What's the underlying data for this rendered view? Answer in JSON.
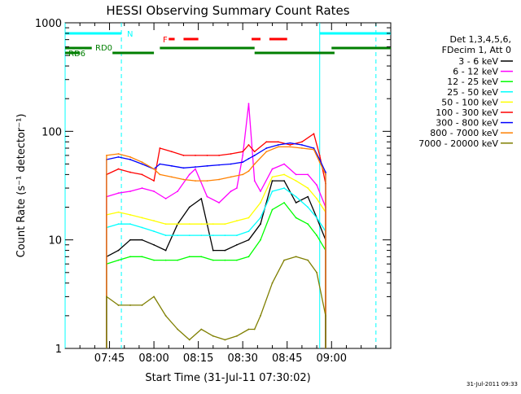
{
  "chart_data": {
    "type": "line",
    "title": "HESSI Observing Summary Count Rates",
    "xlabel": "Start Time (31-Jul-11 07:30:02)",
    "ylabel": "Count Rate (s⁻¹ detector⁻¹)",
    "ylog": true,
    "ylim": [
      1,
      1000
    ],
    "xlim_minutes": [
      0,
      110
    ],
    "x_tick_labels": [
      "07:45",
      "08:00",
      "08:15",
      "08:30",
      "08:45",
      "09:00"
    ],
    "x_tick_minutes": [
      15,
      30,
      45,
      60,
      75,
      90
    ],
    "y_tick_labels": [
      "1",
      "10",
      "100",
      "1000"
    ],
    "y_tick_values": [
      1,
      10,
      100,
      1000
    ],
    "timestamp": "31-Jul-2011 09:33",
    "legend": {
      "header": [
        "Det 1,3,4,5,6,",
        "FDecim 1, Att 0"
      ],
      "placement": "right"
    },
    "flags": {
      "N": {
        "label": "N",
        "color": "#00ffff",
        "segments": [
          [
            0,
            19
          ],
          [
            86,
            110
          ]
        ]
      },
      "F": {
        "label": "F",
        "color": "#ff0000",
        "segments": [
          [
            35,
            37
          ],
          [
            40,
            45
          ],
          [
            63,
            66
          ],
          [
            69,
            75
          ]
        ]
      },
      "RD0": {
        "label": "RD0",
        "color": "#007f00",
        "segments": [
          [
            0,
            9
          ],
          [
            32,
            64
          ],
          [
            90,
            110
          ]
        ]
      },
      "RD6": {
        "label": "RD6",
        "color": "#007f00",
        "segments": [
          [
            0,
            5
          ],
          [
            16,
            30
          ],
          [
            64,
            91
          ]
        ]
      }
    },
    "vlines_solid": [
      0,
      86
    ],
    "vlines_dashed": [
      19,
      105
    ],
    "series": [
      {
        "name": "3 - 6 keV",
        "color": "#000000",
        "x": [
          14,
          18,
          22,
          26,
          30,
          34,
          38,
          42,
          46,
          50,
          54,
          58,
          62,
          66,
          70,
          74,
          78,
          82,
          85,
          88
        ],
        "y": [
          7,
          8,
          10,
          10,
          9,
          8,
          14,
          20,
          24,
          8,
          8,
          9,
          10,
          14,
          35,
          35,
          22,
          25,
          16,
          10
        ]
      },
      {
        "name": "6 - 12 keV",
        "color": "#ff00ff",
        "x": [
          14,
          18,
          22,
          26,
          30,
          34,
          38,
          42,
          44,
          48,
          52,
          56,
          58,
          60,
          62,
          64,
          66,
          70,
          74,
          78,
          82,
          85,
          88
        ],
        "y": [
          25,
          27,
          28,
          30,
          28,
          24,
          28,
          40,
          45,
          25,
          22,
          28,
          30,
          60,
          180,
          35,
          28,
          45,
          50,
          40,
          40,
          32,
          20
        ]
      },
      {
        "name": "12 - 25 keV",
        "color": "#00ff00",
        "x": [
          14,
          18,
          22,
          26,
          30,
          34,
          38,
          42,
          46,
          50,
          54,
          58,
          62,
          66,
          70,
          74,
          78,
          82,
          85,
          88
        ],
        "y": [
          6,
          6.5,
          7,
          7,
          6.5,
          6.5,
          6.5,
          7,
          7,
          6.5,
          6.5,
          6.5,
          7,
          10,
          19,
          22,
          16,
          14,
          11,
          8
        ]
      },
      {
        "name": "25 - 50 keV",
        "color": "#00ffff",
        "x": [
          14,
          18,
          22,
          26,
          30,
          34,
          38,
          42,
          46,
          50,
          54,
          58,
          62,
          66,
          70,
          74,
          78,
          82,
          85,
          88
        ],
        "y": [
          13,
          14,
          14,
          13,
          12,
          11,
          11,
          11,
          11,
          11,
          11,
          11,
          12,
          16,
          28,
          30,
          25,
          20,
          16,
          12
        ]
      },
      {
        "name": "50 - 100 keV",
        "color": "#ffff00",
        "x": [
          14,
          18,
          22,
          26,
          30,
          34,
          38,
          42,
          46,
          50,
          54,
          58,
          62,
          66,
          70,
          74,
          78,
          82,
          85,
          88
        ],
        "y": [
          17,
          18,
          17,
          16,
          15,
          14,
          14,
          14,
          14,
          14,
          14,
          15,
          16,
          22,
          38,
          40,
          35,
          30,
          24,
          18
        ]
      },
      {
        "name": "100 - 300 keV",
        "color": "#ff0000",
        "x": [
          14,
          18,
          22,
          26,
          30,
          32,
          36,
          40,
          44,
          48,
          52,
          56,
          60,
          62,
          64,
          68,
          72,
          76,
          80,
          84,
          86,
          88
        ],
        "y": [
          40,
          45,
          42,
          40,
          35,
          70,
          65,
          60,
          60,
          60,
          60,
          62,
          65,
          75,
          65,
          80,
          80,
          75,
          80,
          95,
          60,
          33
        ]
      },
      {
        "name": "300 - 800 keV",
        "color": "#0000ff",
        "x": [
          14,
          18,
          22,
          26,
          30,
          32,
          36,
          40,
          44,
          48,
          52,
          56,
          60,
          62,
          64,
          68,
          72,
          76,
          80,
          84,
          86,
          88
        ],
        "y": [
          55,
          58,
          55,
          50,
          45,
          50,
          48,
          46,
          47,
          48,
          49,
          50,
          52,
          56,
          60,
          70,
          75,
          78,
          75,
          70,
          55,
          42
        ]
      },
      {
        "name": "800 - 7000 keV",
        "color": "#ff8000",
        "x": [
          14,
          18,
          22,
          26,
          30,
          32,
          36,
          40,
          44,
          48,
          52,
          56,
          60,
          62,
          64,
          68,
          72,
          76,
          80,
          84,
          86,
          88
        ],
        "y": [
          60,
          62,
          58,
          52,
          45,
          40,
          38,
          36,
          35,
          35,
          36,
          38,
          40,
          43,
          50,
          65,
          72,
          72,
          70,
          68,
          52,
          40
        ]
      },
      {
        "name": "7000 - 20000 keV",
        "color": "#7f7f00",
        "x": [
          14,
          18,
          22,
          26,
          30,
          34,
          38,
          42,
          46,
          50,
          54,
          58,
          62,
          64,
          66,
          70,
          74,
          78,
          82,
          85,
          88
        ],
        "y": [
          3,
          2.5,
          2.5,
          2.5,
          3,
          2,
          1.5,
          1.2,
          1.5,
          1.3,
          1.2,
          1.3,
          1.5,
          1.5,
          2,
          4,
          6.5,
          7,
          6.5,
          5,
          2
        ]
      }
    ]
  }
}
